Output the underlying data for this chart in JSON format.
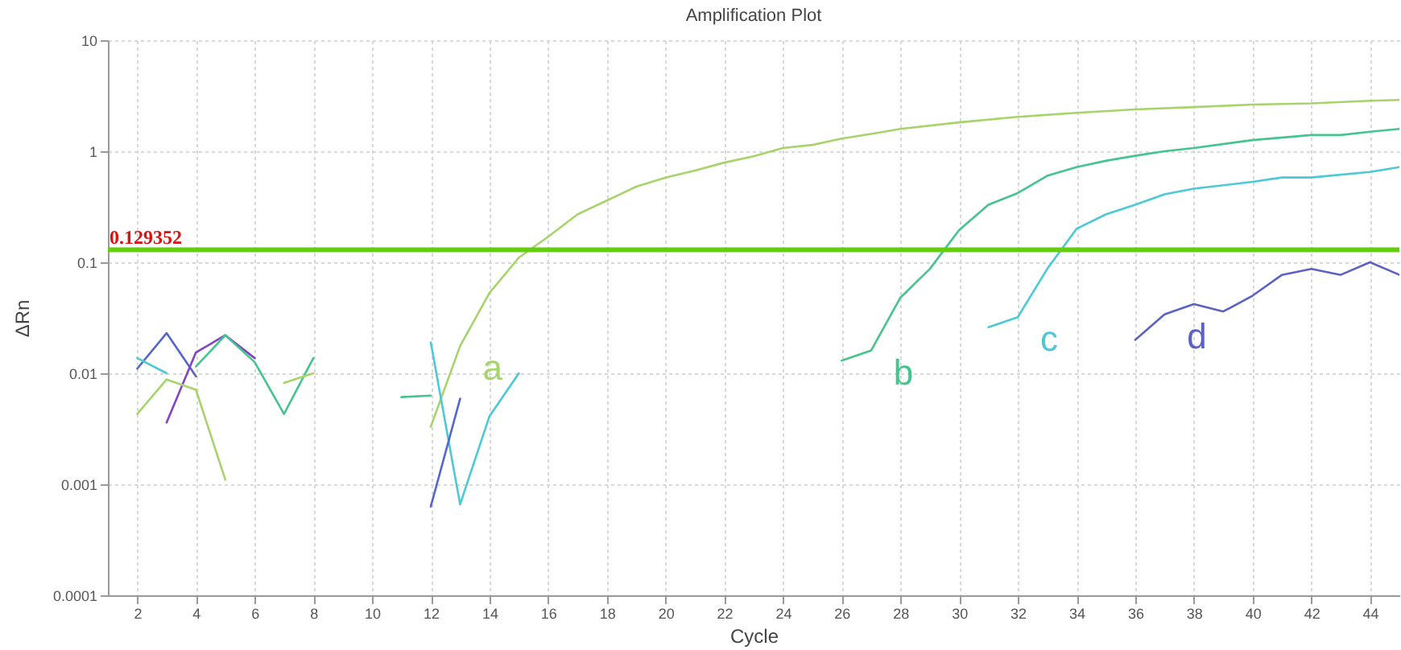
{
  "chart_data": {
    "type": "line",
    "title": "Amplification Plot",
    "xlabel": "Cycle",
    "ylabel": "ΔRn",
    "log": true,
    "grid": true,
    "xlim": [
      1,
      45
    ],
    "xticks": [
      2,
      4,
      6,
      8,
      10,
      12,
      14,
      16,
      18,
      20,
      22,
      24,
      26,
      28,
      30,
      32,
      34,
      36,
      38,
      40,
      42,
      44
    ],
    "ylim": [
      0.0001,
      10
    ],
    "yticks": [
      0.0001,
      0.001,
      0.01,
      0.1,
      1,
      10
    ],
    "series": [
      {
        "name": "a",
        "color": "#a6d46a",
        "x": [
          12,
          13,
          14,
          15,
          16,
          17,
          18,
          19,
          20,
          21,
          22,
          23,
          24,
          25,
          26,
          27,
          28,
          30,
          32,
          34,
          36,
          38,
          40,
          42,
          44,
          45
        ],
        "values": [
          0.0033,
          0.0176,
          0.053,
          0.11,
          0.17,
          0.27,
          0.36,
          0.48,
          0.58,
          0.67,
          0.79,
          0.9,
          1.07,
          1.14,
          1.3,
          1.43,
          1.59,
          1.82,
          2.04,
          2.22,
          2.38,
          2.5,
          2.63,
          2.7,
          2.85,
          2.9
        ]
      },
      {
        "name": "b",
        "color": "#45c48e",
        "x": [
          26,
          27,
          28,
          29,
          30,
          31,
          32,
          33,
          34,
          35,
          36,
          37,
          38,
          40,
          42,
          43,
          44,
          45
        ],
        "values": [
          0.013,
          0.016,
          0.048,
          0.087,
          0.195,
          0.33,
          0.42,
          0.6,
          0.72,
          0.82,
          0.91,
          1.0,
          1.07,
          1.26,
          1.4,
          1.4,
          1.5,
          1.59
        ]
      },
      {
        "name": "c",
        "color": "#4cc9d6",
        "x": [
          31,
          32,
          33,
          34,
          35,
          36,
          37,
          38,
          40,
          41,
          42,
          44,
          45
        ],
        "values": [
          0.026,
          0.032,
          0.087,
          0.2,
          0.27,
          0.33,
          0.41,
          0.46,
          0.53,
          0.58,
          0.58,
          0.65,
          0.72
        ]
      },
      {
        "name": "d",
        "color": "#5c62c4",
        "x": [
          36,
          37,
          38,
          39,
          40,
          41,
          42,
          43,
          44,
          45
        ],
        "values": [
          0.02,
          0.034,
          0.042,
          0.036,
          0.05,
          0.077,
          0.087,
          0.077,
          0.1,
          0.077
        ]
      },
      {
        "color": "#5566cc",
        "x": [
          2,
          3,
          4
        ],
        "values": [
          0.011,
          0.023,
          0.0094
        ]
      },
      {
        "color": "#8044c4",
        "x": [
          3,
          4,
          5,
          6
        ],
        "values": [
          0.0036,
          0.0154,
          0.022,
          0.0137
        ]
      },
      {
        "color": "#45c48e",
        "x": [
          4,
          5,
          6,
          7,
          8
        ],
        "values": [
          0.0115,
          0.022,
          0.0126,
          0.0043,
          0.0137
        ]
      },
      {
        "color": "#4cc9d6",
        "x": [
          2,
          3
        ],
        "values": [
          0.0137,
          0.01
        ]
      },
      {
        "color": "#a6d46a",
        "x": [
          2,
          3,
          4,
          5
        ],
        "values": [
          0.0043,
          0.0088,
          0.0071,
          0.0011
        ]
      },
      {
        "color": "#a6d46a",
        "x": [
          7,
          8
        ],
        "values": [
          0.0082,
          0.01
        ]
      },
      {
        "color": "#45c48e",
        "x": [
          11,
          12
        ],
        "values": [
          0.0061,
          0.0063
        ]
      },
      {
        "color": "#4cc9d6",
        "x": [
          12,
          13,
          14,
          15
        ],
        "values": [
          0.019,
          0.00066,
          0.0041,
          0.01
        ]
      },
      {
        "color": "#5566cc",
        "x": [
          12,
          13
        ],
        "values": [
          0.00063,
          0.0059
        ]
      }
    ],
    "ref_lines": [
      {
        "axis": "y",
        "value": 0.129352,
        "label": "0.129352",
        "color": "#66cc11"
      }
    ]
  }
}
